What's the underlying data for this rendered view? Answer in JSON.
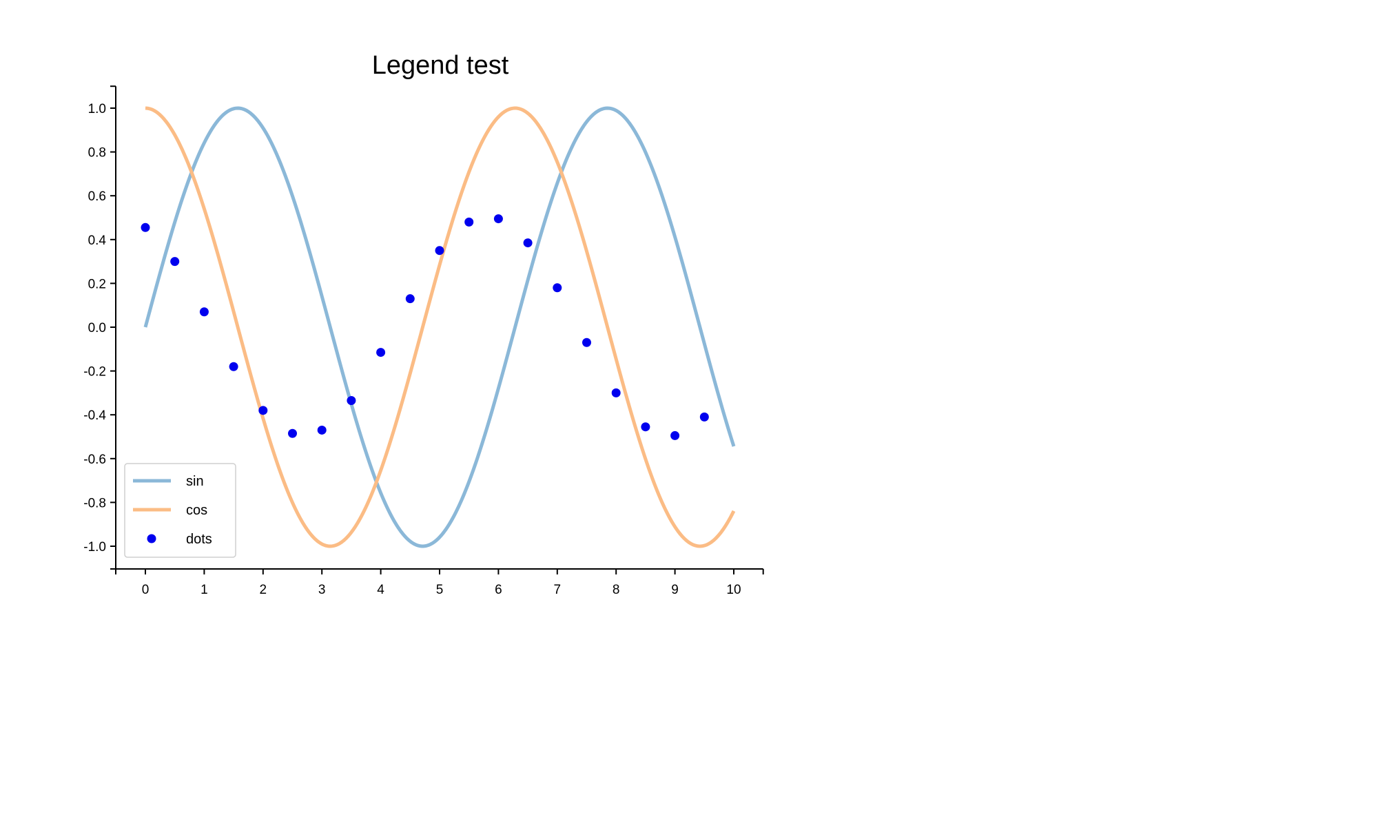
{
  "chart_data": {
    "type": "line",
    "title": "Legend test",
    "xlabel": "",
    "ylabel": "",
    "xlim": [
      -0.5,
      10.5
    ],
    "ylim": [
      -1.1,
      1.1
    ],
    "xticks": [
      0,
      1,
      2,
      3,
      4,
      5,
      6,
      7,
      8,
      9,
      10
    ],
    "yticks": [
      -1.0,
      -0.8,
      -0.6,
      -0.4,
      -0.2,
      0.0,
      0.2,
      0.4,
      0.6,
      0.8,
      1.0
    ],
    "xtick_labels": [
      "0",
      "1",
      "2",
      "3",
      "4",
      "5",
      "6",
      "7",
      "8",
      "9",
      "10"
    ],
    "ytick_labels": [
      "-1.0",
      "-0.8",
      "-0.6",
      "-0.4",
      "-0.2",
      "0.0",
      "0.2",
      "0.4",
      "0.6",
      "0.8",
      "1.0"
    ],
    "grid": false,
    "legend_position": "bottom-left",
    "series": [
      {
        "name": "sin",
        "kind": "line",
        "color": "#8bb8d8",
        "function": "sin",
        "x_range": [
          0,
          10
        ]
      },
      {
        "name": "cos",
        "kind": "line",
        "color": "#fbbc85",
        "function": "cos",
        "x_range": [
          0,
          10
        ]
      },
      {
        "name": "dots",
        "kind": "scatter",
        "color": "#0000ee",
        "x": [
          0,
          0.5,
          1,
          1.5,
          2,
          2.5,
          3,
          3.5,
          4,
          4.5,
          5,
          5.5,
          6,
          6.5,
          7,
          7.5,
          8,
          8.5,
          9,
          9.5
        ],
        "y": [
          0.455,
          0.3,
          0.07,
          -0.18,
          -0.38,
          -0.485,
          -0.47,
          -0.335,
          -0.115,
          0.13,
          0.35,
          0.48,
          0.495,
          0.385,
          0.18,
          -0.07,
          -0.3,
          -0.455,
          -0.495,
          -0.41
        ]
      }
    ]
  }
}
